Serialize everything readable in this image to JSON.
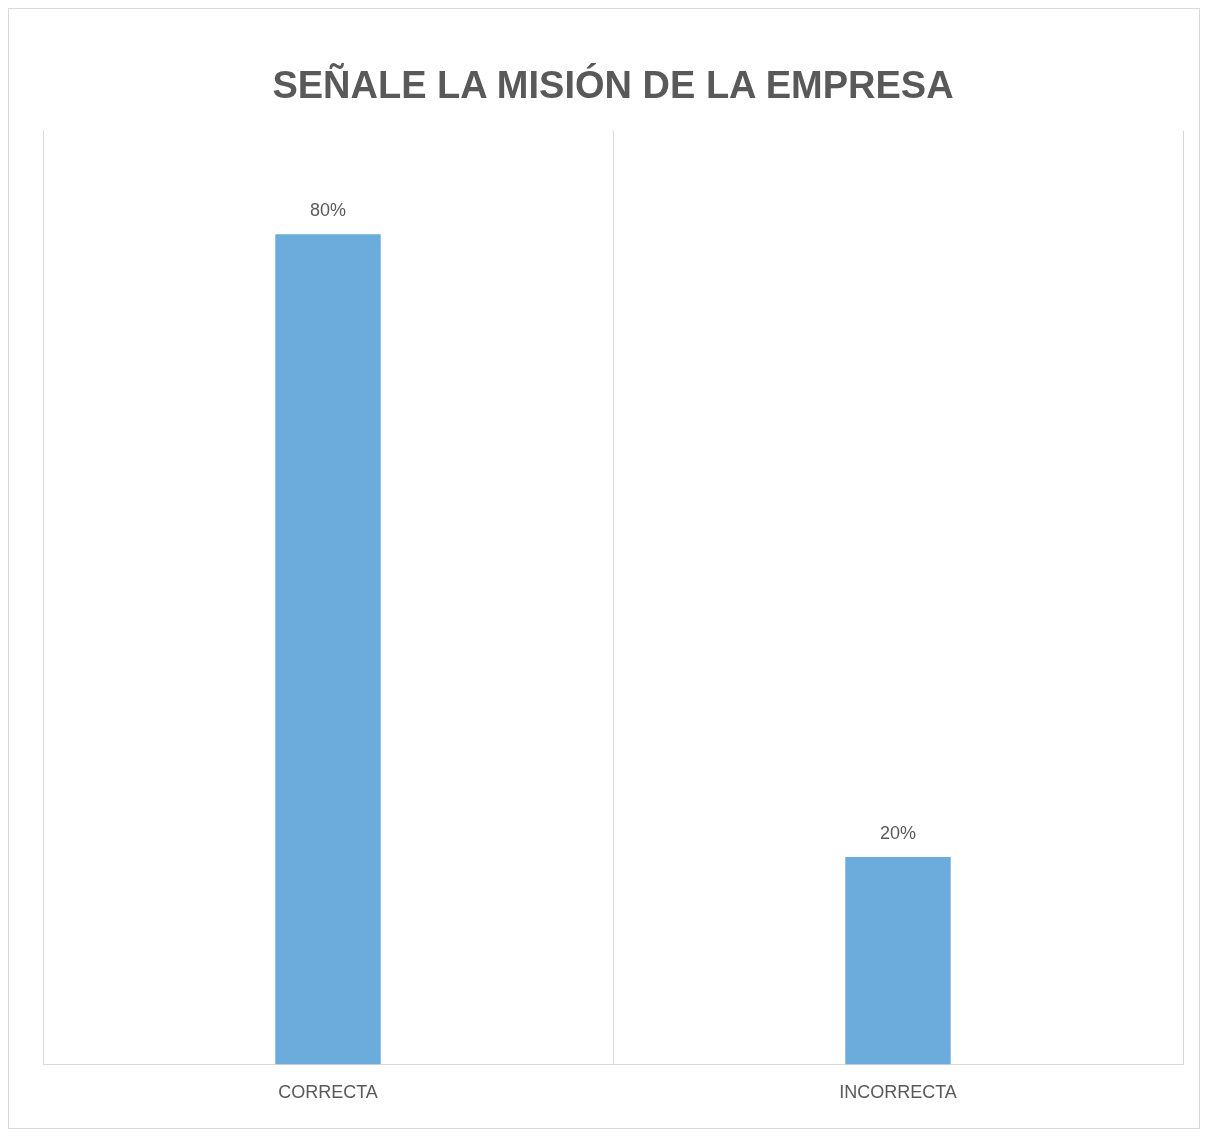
{
  "chart_data": {
    "type": "bar",
    "title": "SEÑALE LA MISIÓN DE LA EMPRESA",
    "categories": [
      "CORRECTA",
      "INCORRECTA"
    ],
    "values": [
      80,
      20
    ],
    "value_labels": [
      "80%",
      "20%"
    ],
    "color": "#6cacdc",
    "ylim": [
      0,
      90
    ],
    "grid": "x",
    "legend": false
  }
}
